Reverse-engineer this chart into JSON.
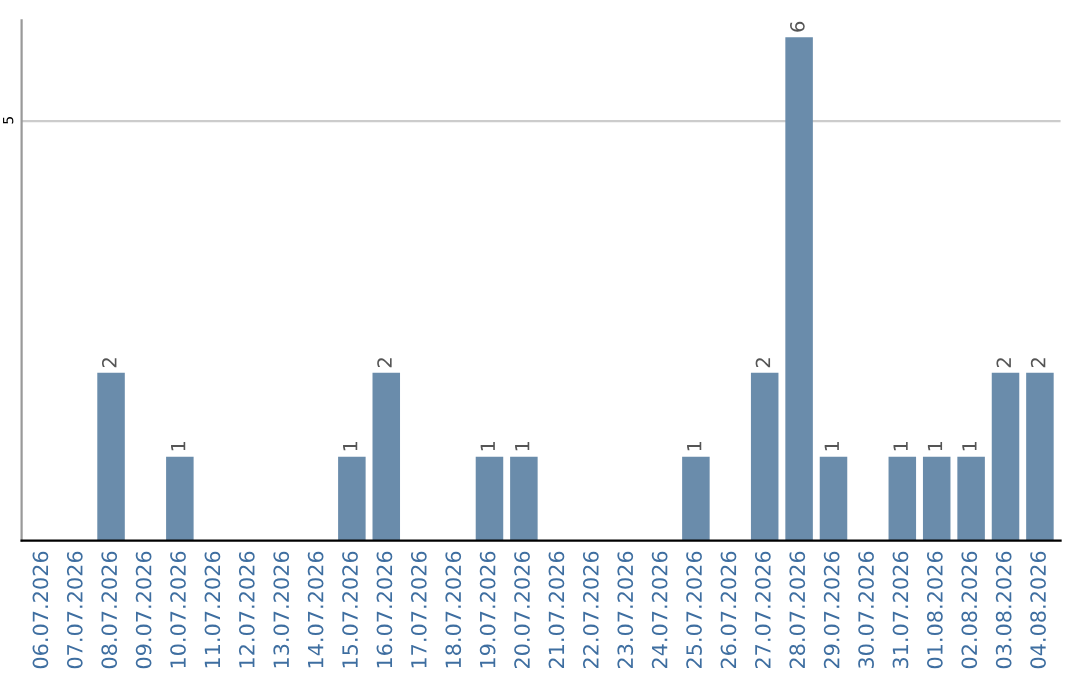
{
  "chart_data": {
    "type": "bar",
    "categories": [
      "06.07.2026",
      "07.07.2026",
      "08.07.2026",
      "09.07.2026",
      "10.07.2026",
      "11.07.2026",
      "12.07.2026",
      "13.07.2026",
      "14.07.2026",
      "15.07.2026",
      "16.07.2026",
      "17.07.2026",
      "18.07.2026",
      "19.07.2026",
      "20.07.2026",
      "21.07.2026",
      "22.07.2026",
      "23.07.2026",
      "24.07.2026",
      "25.07.2026",
      "26.07.2026",
      "27.07.2026",
      "28.07.2026",
      "29.07.2026",
      "30.07.2026",
      "31.07.2026",
      "01.08.2026",
      "02.08.2026",
      "03.08.2026",
      "04.08.2026"
    ],
    "values": [
      0,
      0,
      2,
      0,
      1,
      0,
      0,
      0,
      0,
      1,
      2,
      0,
      0,
      1,
      1,
      0,
      0,
      0,
      0,
      1,
      0,
      2,
      6,
      1,
      0,
      1,
      1,
      1,
      2,
      2
    ],
    "value_labels": [
      null,
      null,
      "2",
      null,
      "1",
      null,
      null,
      null,
      null,
      "1",
      "2",
      null,
      null,
      "1",
      "1",
      null,
      null,
      null,
      null,
      "1",
      null,
      "2",
      "6",
      "1",
      null,
      "1",
      "1",
      "1",
      "2",
      "2"
    ],
    "color": "#6a8cab",
    "ylim": [
      0,
      6.2
    ],
    "yticks": [
      5
    ],
    "grid": "y"
  }
}
